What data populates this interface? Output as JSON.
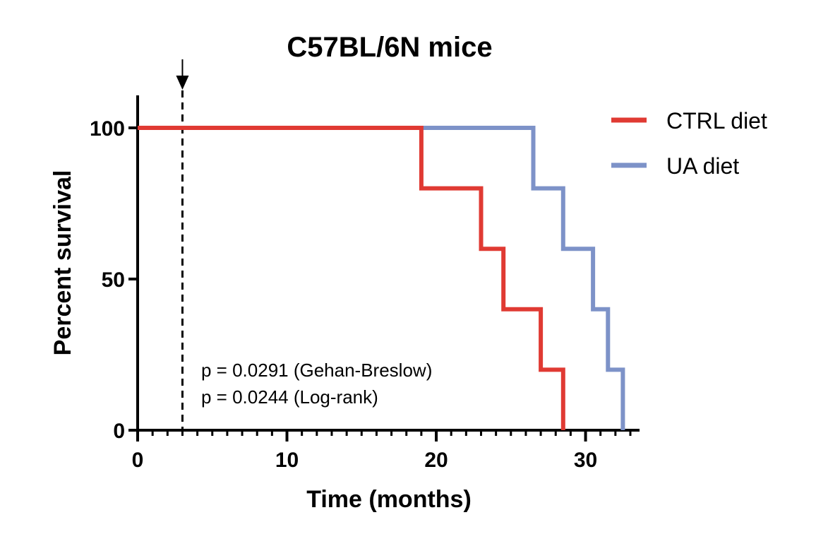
{
  "chart_data": {
    "type": "line",
    "subtype": "kaplan-meier-step",
    "title": "C57BL/6N mice",
    "xlabel": "Time (months)",
    "ylabel": "Percent survival",
    "xlim": [
      0,
      33
    ],
    "ylim": [
      0,
      100
    ],
    "x_ticks": [
      0,
      10,
      20,
      30
    ],
    "y_ticks": [
      0,
      50,
      100
    ],
    "x_minor_tick_step": 1,
    "grid": false,
    "legend_position": "top-right",
    "series": [
      {
        "name": "CTRL diet",
        "color": "#e03a33",
        "style": "solid",
        "points": [
          [
            0,
            100
          ],
          [
            19,
            100
          ],
          [
            19,
            80
          ],
          [
            23,
            80
          ],
          [
            23,
            60
          ],
          [
            24.5,
            60
          ],
          [
            24.5,
            40
          ],
          [
            27,
            40
          ],
          [
            27,
            20
          ],
          [
            28.5,
            20
          ],
          [
            28.5,
            0
          ]
        ]
      },
      {
        "name": "UA diet",
        "color": "#7d92c8",
        "style": "solid",
        "points": [
          [
            0,
            100
          ],
          [
            26.5,
            100
          ],
          [
            26.5,
            80
          ],
          [
            28.5,
            80
          ],
          [
            28.5,
            60
          ],
          [
            30.5,
            60
          ],
          [
            30.5,
            40
          ],
          [
            31.5,
            40
          ],
          [
            31.5,
            20
          ],
          [
            32.5,
            20
          ],
          [
            32.5,
            0
          ]
        ]
      }
    ],
    "annotations": {
      "marker_line_x": 3,
      "marker_style": "dashed vertical line with downward arrow",
      "lines": [
        "p = 0.0291 (Gehan-Breslow)",
        "p = 0.0244 (Log-rank)"
      ]
    }
  }
}
